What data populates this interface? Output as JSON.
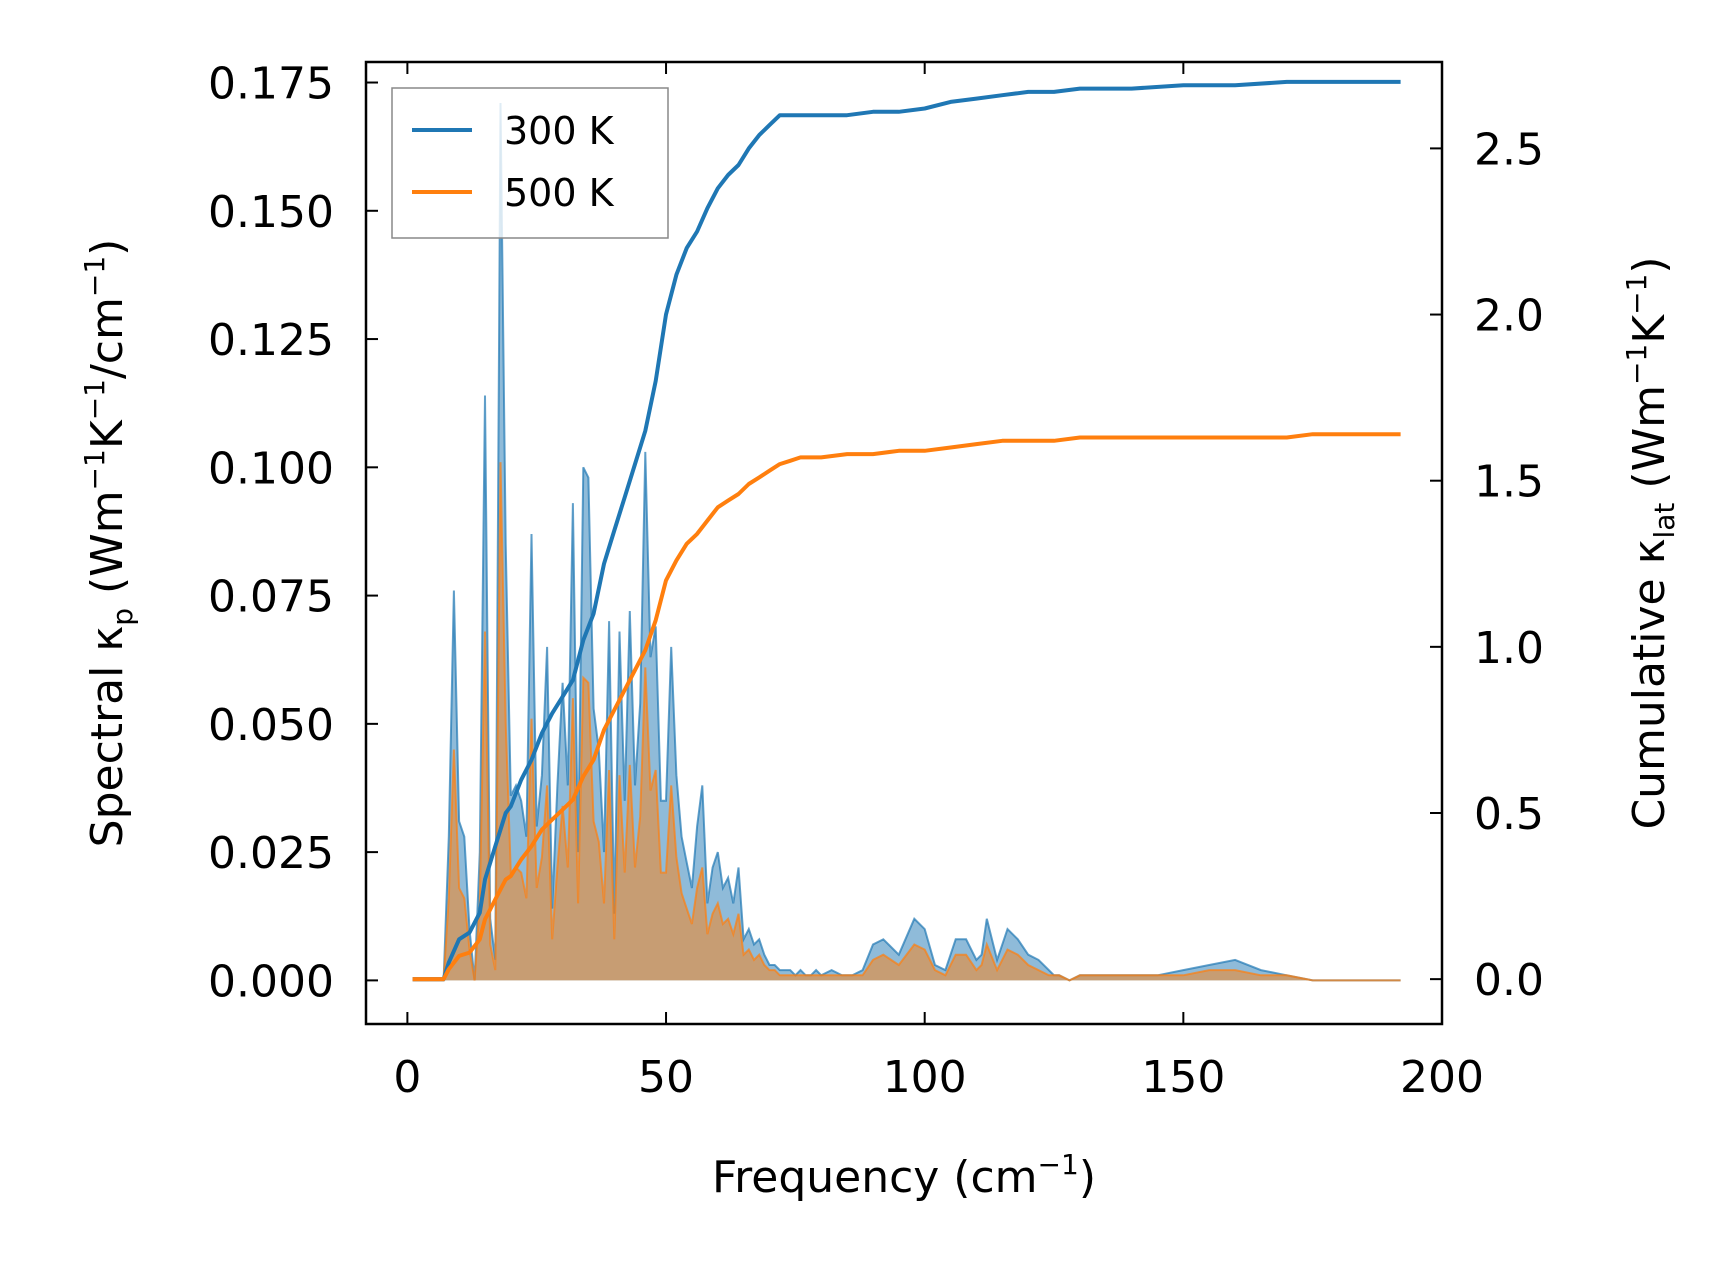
{
  "chart_data": {
    "type": "area+line",
    "title": "",
    "xlabel": "Frequency (cm",
    "xlabel_sup": "−1",
    "xlabel_end": ")",
    "ylabel_left": {
      "pre": "Spectral κ",
      "sub": "p",
      "mid1": " (Wm",
      "sup1": "−1",
      "mid2": "K",
      "sup2": "−1",
      "mid3": "/cm",
      "sup3": "−1",
      "end": ")"
    },
    "ylabel_right": {
      "pre": "Cumulative κ",
      "sub": "lat",
      "mid1": " (Wm",
      "sup1": "−1",
      "mid2": "K",
      "sup2": "−1",
      "end": ")"
    },
    "xlim": [
      -8,
      200
    ],
    "ylim_left": [
      -0.0085,
      0.179
    ],
    "ylim_right": [
      -0.135,
      2.76
    ],
    "x_ticks": [
      0,
      50,
      100,
      150,
      200
    ],
    "x_tick_labels": [
      "0",
      "50",
      "100",
      "150",
      "200"
    ],
    "y_left_ticks": [
      0.0,
      0.025,
      0.05,
      0.075,
      0.1,
      0.125,
      0.15,
      0.175
    ],
    "y_left_tick_labels": [
      "0.000",
      "0.025",
      "0.050",
      "0.075",
      "0.100",
      "0.125",
      "0.150",
      "0.175"
    ],
    "y_right_ticks": [
      0.0,
      0.5,
      1.0,
      1.5,
      2.0,
      2.5
    ],
    "y_right_tick_labels": [
      "0.0",
      "0.5",
      "1.0",
      "1.5",
      "2.0",
      "2.5"
    ],
    "legend": {
      "position": "top-left",
      "entries": [
        "300 K",
        "500 K"
      ]
    },
    "colors": {
      "300 K": "#1f77b4",
      "500 K": "#ff7f0e"
    },
    "series": [
      {
        "name": "300 K",
        "spectral": {
          "x": [
            1,
            7,
            8,
            9,
            10,
            11,
            12,
            13,
            14,
            15,
            16,
            17,
            18,
            19,
            20,
            21,
            22,
            23,
            24,
            25,
            26,
            27,
            28,
            29,
            30,
            31,
            32,
            33,
            34,
            35,
            36,
            37,
            38,
            39,
            40,
            41,
            42,
            43,
            44,
            45,
            46,
            47,
            48,
            49,
            50,
            51,
            52,
            53,
            54,
            55,
            56,
            57,
            58,
            59,
            60,
            61,
            62,
            63,
            64,
            65,
            66,
            67,
            68,
            69,
            70,
            71,
            72,
            73,
            74,
            75,
            76,
            77,
            78,
            79,
            80,
            82,
            84,
            86,
            88,
            90,
            92,
            95,
            98,
            100,
            102,
            104,
            106,
            108,
            110,
            111,
            112,
            114,
            116,
            118,
            120,
            122,
            124,
            125,
            126,
            128,
            130,
            132,
            134,
            136,
            138,
            140,
            145,
            150,
            155,
            160,
            165,
            170,
            175,
            180,
            185,
            192
          ],
          "y": [
            0,
            0,
            0.028,
            0.076,
            0.031,
            0.028,
            0.01,
            0.0,
            0.025,
            0.114,
            0.012,
            0.004,
            0.171,
            0.085,
            0.036,
            0.038,
            0.035,
            0.028,
            0.087,
            0.03,
            0.04,
            0.065,
            0.014,
            0.038,
            0.058,
            0.038,
            0.093,
            0.025,
            0.1,
            0.098,
            0.053,
            0.045,
            0.025,
            0.07,
            0.013,
            0.068,
            0.035,
            0.072,
            0.038,
            0.054,
            0.103,
            0.063,
            0.069,
            0.035,
            0.035,
            0.065,
            0.04,
            0.028,
            0.023,
            0.018,
            0.03,
            0.038,
            0.015,
            0.022,
            0.025,
            0.018,
            0.02,
            0.015,
            0.022,
            0.008,
            0.01,
            0.007,
            0.008,
            0.005,
            0.003,
            0.003,
            0.002,
            0.002,
            0.002,
            0.001,
            0.002,
            0.001,
            0.001,
            0.002,
            0.001,
            0.002,
            0.001,
            0.001,
            0.002,
            0.007,
            0.008,
            0.005,
            0.012,
            0.01,
            0.003,
            0.002,
            0.008,
            0.008,
            0.004,
            0.005,
            0.012,
            0.004,
            0.01,
            0.008,
            0.005,
            0.004,
            0.002,
            0.001,
            0.001,
            0.0,
            0.001,
            0.001,
            0.001,
            0.001,
            0.001,
            0.001,
            0.001,
            0.002,
            0.003,
            0.004,
            0.002,
            0.001,
            0.0,
            0.0,
            0.0,
            0.0
          ]
        },
        "cumulative": {
          "x": [
            1,
            7,
            8,
            10,
            12,
            14,
            15,
            16,
            17,
            18,
            19,
            20,
            22,
            24,
            26,
            28,
            30,
            32,
            34,
            36,
            38,
            40,
            42,
            44,
            46,
            48,
            50,
            52,
            54,
            56,
            58,
            60,
            62,
            64,
            66,
            68,
            70,
            72,
            74,
            76,
            78,
            80,
            85,
            90,
            95,
            100,
            105,
            110,
            115,
            120,
            125,
            130,
            135,
            140,
            150,
            160,
            170,
            175,
            180,
            192
          ],
          "y": [
            0.0,
            0.0,
            0.05,
            0.12,
            0.14,
            0.2,
            0.3,
            0.35,
            0.4,
            0.45,
            0.5,
            0.52,
            0.6,
            0.66,
            0.74,
            0.8,
            0.85,
            0.9,
            1.02,
            1.1,
            1.25,
            1.35,
            1.45,
            1.55,
            1.65,
            1.8,
            2.0,
            2.12,
            2.2,
            2.25,
            2.32,
            2.38,
            2.42,
            2.45,
            2.5,
            2.54,
            2.57,
            2.6,
            2.6,
            2.6,
            2.6,
            2.6,
            2.6,
            2.61,
            2.61,
            2.62,
            2.64,
            2.65,
            2.66,
            2.67,
            2.67,
            2.68,
            2.68,
            2.68,
            2.69,
            2.69,
            2.7,
            2.7,
            2.7,
            2.7
          ]
        }
      },
      {
        "name": "500 K",
        "spectral": {
          "x": [
            1,
            7,
            8,
            9,
            10,
            11,
            12,
            13,
            14,
            15,
            16,
            17,
            18,
            19,
            20,
            21,
            22,
            23,
            24,
            25,
            26,
            27,
            28,
            29,
            30,
            31,
            32,
            33,
            34,
            35,
            36,
            37,
            38,
            39,
            40,
            41,
            42,
            43,
            44,
            45,
            46,
            47,
            48,
            49,
            50,
            51,
            52,
            53,
            54,
            55,
            56,
            57,
            58,
            59,
            60,
            61,
            62,
            63,
            64,
            65,
            66,
            67,
            68,
            69,
            70,
            71,
            72,
            73,
            74,
            75,
            76,
            77,
            78,
            79,
            80,
            82,
            84,
            86,
            88,
            90,
            92,
            95,
            98,
            100,
            102,
            104,
            106,
            108,
            110,
            111,
            112,
            114,
            116,
            118,
            120,
            122,
            124,
            125,
            126,
            128,
            130,
            132,
            134,
            136,
            138,
            140,
            145,
            150,
            155,
            160,
            165,
            170,
            175,
            180,
            185,
            192
          ],
          "y": [
            0,
            0,
            0.016,
            0.045,
            0.018,
            0.016,
            0.006,
            0.0,
            0.015,
            0.068,
            0.007,
            0.002,
            0.101,
            0.05,
            0.021,
            0.022,
            0.021,
            0.016,
            0.051,
            0.018,
            0.024,
            0.038,
            0.008,
            0.022,
            0.034,
            0.022,
            0.055,
            0.015,
            0.059,
            0.058,
            0.031,
            0.027,
            0.015,
            0.041,
            0.008,
            0.04,
            0.021,
            0.042,
            0.022,
            0.032,
            0.061,
            0.037,
            0.041,
            0.021,
            0.021,
            0.038,
            0.024,
            0.017,
            0.014,
            0.011,
            0.018,
            0.022,
            0.009,
            0.013,
            0.015,
            0.011,
            0.012,
            0.009,
            0.013,
            0.005,
            0.006,
            0.004,
            0.005,
            0.003,
            0.002,
            0.002,
            0.001,
            0.001,
            0.001,
            0.001,
            0.001,
            0.001,
            0.001,
            0.001,
            0.001,
            0.001,
            0.001,
            0.001,
            0.001,
            0.004,
            0.005,
            0.003,
            0.007,
            0.006,
            0.002,
            0.001,
            0.005,
            0.005,
            0.002,
            0.003,
            0.007,
            0.002,
            0.006,
            0.005,
            0.003,
            0.002,
            0.001,
            0.001,
            0.001,
            0.0,
            0.001,
            0.001,
            0.001,
            0.001,
            0.001,
            0.001,
            0.001,
            0.001,
            0.002,
            0.002,
            0.001,
            0.001,
            0.0,
            0.0,
            0.0,
            0.0
          ]
        },
        "cumulative": {
          "x": [
            1,
            7,
            8,
            10,
            12,
            14,
            15,
            16,
            17,
            18,
            19,
            20,
            22,
            24,
            26,
            28,
            30,
            32,
            34,
            36,
            38,
            40,
            42,
            44,
            46,
            48,
            50,
            52,
            54,
            56,
            58,
            60,
            62,
            64,
            66,
            68,
            70,
            72,
            74,
            76,
            78,
            80,
            85,
            90,
            95,
            100,
            105,
            110,
            115,
            120,
            125,
            130,
            135,
            140,
            150,
            160,
            170,
            175,
            180,
            192
          ],
          "y": [
            0.0,
            0.0,
            0.03,
            0.07,
            0.08,
            0.12,
            0.18,
            0.21,
            0.24,
            0.27,
            0.3,
            0.31,
            0.36,
            0.4,
            0.45,
            0.48,
            0.51,
            0.54,
            0.61,
            0.66,
            0.75,
            0.81,
            0.87,
            0.93,
            0.99,
            1.08,
            1.2,
            1.26,
            1.31,
            1.34,
            1.38,
            1.42,
            1.44,
            1.46,
            1.49,
            1.51,
            1.53,
            1.55,
            1.56,
            1.57,
            1.57,
            1.57,
            1.58,
            1.58,
            1.59,
            1.59,
            1.6,
            1.61,
            1.62,
            1.62,
            1.62,
            1.63,
            1.63,
            1.63,
            1.63,
            1.63,
            1.63,
            1.64,
            1.64,
            1.64
          ]
        }
      }
    ]
  }
}
